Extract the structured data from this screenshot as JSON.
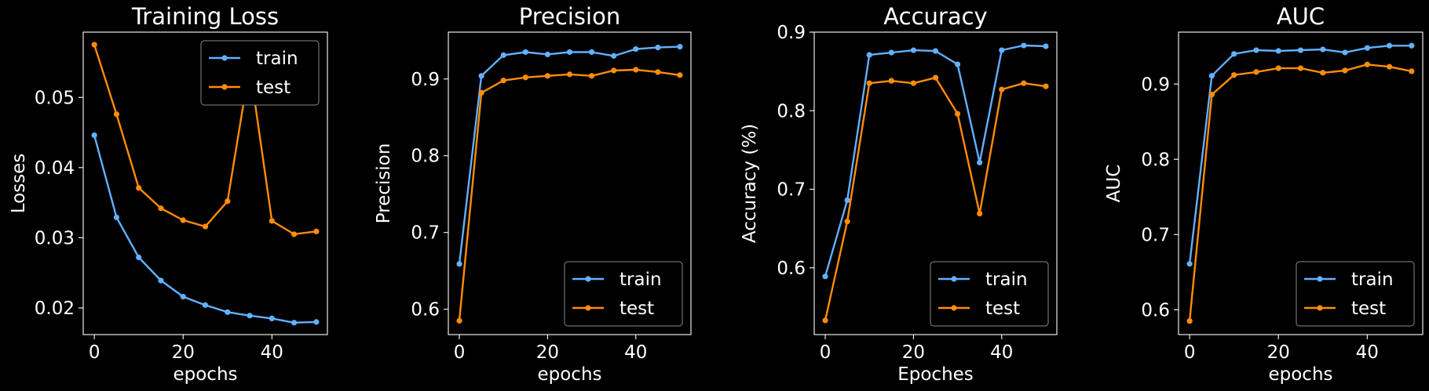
{
  "chart_data": [
    {
      "type": "line",
      "title": "Training Loss",
      "xlabel": "epochs",
      "ylabel": "Losses",
      "xlim": [
        -2.5,
        52.5
      ],
      "ylim": [
        0.0162,
        0.0593
      ],
      "xticks": [
        0,
        20,
        40
      ],
      "xtick_labels": [
        "0",
        "20",
        "40"
      ],
      "yticks": [
        0.02,
        0.03,
        0.04,
        0.05
      ],
      "ytick_labels": [
        "0.02",
        "0.03",
        "0.04",
        "0.05"
      ],
      "legend_position": "top-right",
      "x": [
        0,
        5,
        10,
        15,
        20,
        25,
        30,
        35,
        40,
        45,
        50
      ],
      "series": [
        {
          "name": "train",
          "color": "#62b0ff",
          "values": [
            0.0446,
            0.0329,
            0.0272,
            0.0239,
            0.0216,
            0.0204,
            0.0194,
            0.0189,
            0.0185,
            0.0179,
            0.018
          ]
        },
        {
          "name": "test",
          "color": "#ff8c0a",
          "values": [
            0.0575,
            0.0476,
            0.0371,
            0.0342,
            0.0325,
            0.0316,
            0.0352,
            0.0545,
            0.0324,
            0.0305,
            0.0309
          ]
        }
      ]
    },
    {
      "type": "line",
      "title": "Precision",
      "xlabel": "epochs",
      "ylabel": "Precision",
      "xlim": [
        -2.5,
        52.5
      ],
      "ylim": [
        0.567,
        0.961
      ],
      "xticks": [
        0,
        20,
        40
      ],
      "xtick_labels": [
        "0",
        "20",
        "40"
      ],
      "yticks": [
        0.6,
        0.7,
        0.8,
        0.9
      ],
      "ytick_labels": [
        "0.6",
        "0.7",
        "0.8",
        "0.9"
      ],
      "legend_position": "bottom-right",
      "x": [
        0,
        5,
        10,
        15,
        20,
        25,
        30,
        35,
        40,
        45,
        50
      ],
      "series": [
        {
          "name": "train",
          "color": "#62b0ff",
          "values": [
            0.659,
            0.904,
            0.931,
            0.935,
            0.932,
            0.935,
            0.935,
            0.93,
            0.939,
            0.941,
            0.942
          ]
        },
        {
          "name": "test",
          "color": "#ff8c0a",
          "values": [
            0.585,
            0.882,
            0.898,
            0.902,
            0.904,
            0.906,
            0.904,
            0.911,
            0.912,
            0.909,
            0.905
          ]
        }
      ]
    },
    {
      "type": "line",
      "title": "Accuracy",
      "xlabel": "Epoches",
      "ylabel": "Accuracy (%)",
      "xlim": [
        -2.5,
        52.5
      ],
      "ylim": [
        0.515,
        0.9
      ],
      "xticks": [
        0,
        20,
        40
      ],
      "xtick_labels": [
        "0",
        "20",
        "40"
      ],
      "yticks": [
        0.6,
        0.7,
        0.8,
        0.9
      ],
      "ytick_labels": [
        "0.6",
        "0.7",
        "0.8",
        "0.9"
      ],
      "legend_position": "bottom-right",
      "x": [
        0,
        5,
        10,
        15,
        20,
        25,
        30,
        35,
        40,
        45,
        50
      ],
      "series": [
        {
          "name": "train",
          "color": "#62b0ff",
          "values": [
            0.589,
            0.686,
            0.871,
            0.874,
            0.877,
            0.876,
            0.859,
            0.734,
            0.877,
            0.883,
            0.882
          ]
        },
        {
          "name": "test",
          "color": "#ff8c0a",
          "values": [
            0.533,
            0.659,
            0.835,
            0.838,
            0.835,
            0.842,
            0.796,
            0.669,
            0.827,
            0.835,
            0.831
          ]
        }
      ]
    },
    {
      "type": "line",
      "title": "AUC",
      "xlabel": "epochs",
      "ylabel": "AUC",
      "xlim": [
        -2.5,
        52.5
      ],
      "ylim": [
        0.567,
        0.969
      ],
      "xticks": [
        0,
        20,
        40
      ],
      "xtick_labels": [
        "0",
        "20",
        "40"
      ],
      "yticks": [
        0.6,
        0.7,
        0.8,
        0.9
      ],
      "ytick_labels": [
        "0.6",
        "0.7",
        "0.8",
        "0.9"
      ],
      "legend_position": "bottom-right",
      "x": [
        0,
        5,
        10,
        15,
        20,
        25,
        30,
        35,
        40,
        45,
        50
      ],
      "series": [
        {
          "name": "train",
          "color": "#62b0ff",
          "values": [
            0.661,
            0.911,
            0.94,
            0.945,
            0.944,
            0.945,
            0.946,
            0.942,
            0.948,
            0.951,
            0.951
          ]
        },
        {
          "name": "test",
          "color": "#ff8c0a",
          "values": [
            0.585,
            0.886,
            0.912,
            0.916,
            0.921,
            0.921,
            0.915,
            0.918,
            0.926,
            0.923,
            0.917
          ]
        }
      ]
    }
  ]
}
